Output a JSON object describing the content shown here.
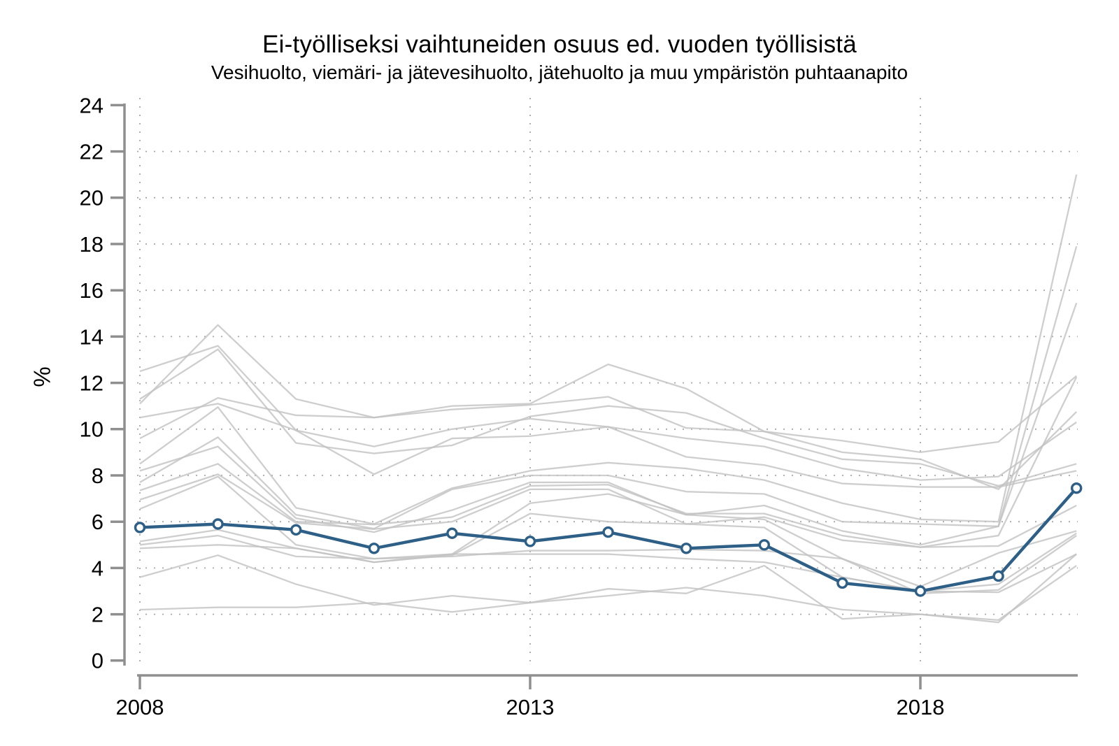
{
  "figure": {
    "title": "Ei-työlliseksi vaihtuneiden osuus ed. vuoden työllisistä",
    "subtitle": "Vesihuolto, viemäri- ja jätevesihuolto, jätehuolto ja muu ympäristön puhtaanapito",
    "ylabel": "%"
  },
  "chart_data": {
    "type": "line",
    "title": "Ei-työlliseksi vaihtuneiden osuus ed. vuoden työllisistä",
    "subtitle": "Vesihuolto, viemäri- ja jätevesihuolto, jätehuolto ja muu ympäristön puhtaanapito",
    "xlabel": "",
    "ylabel": "%",
    "x": [
      2008,
      2009,
      2010,
      2011,
      2012,
      2013,
      2014,
      2015,
      2016,
      2017,
      2018,
      2019,
      2020
    ],
    "xticks": [
      2008,
      2013,
      2018
    ],
    "yticks": [
      0,
      2,
      4,
      6,
      8,
      10,
      12,
      14,
      16,
      18,
      20,
      22,
      24
    ],
    "ylim": [
      0,
      24
    ],
    "grid": "dotted horizontal lines at 2..22, dotted vertical lines at 2008/2013/2018",
    "legend_position": "none",
    "highlighted_series": {
      "name": "Vesihuolto, viemäri- ja jätevesihuolto, jätehuolto ja muu ympäristön puhtaanapito",
      "color": "#2d5f87",
      "marker": "open-circle",
      "values": [
        5.75,
        5.9,
        5.65,
        4.85,
        5.5,
        5.15,
        5.55,
        4.85,
        5.0,
        3.35,
        3.0,
        3.65,
        7.45
      ]
    },
    "background_series": [
      {
        "name": "other-industry-01",
        "values": [
          11.1,
          14.5,
          11.3,
          10.5,
          11.0,
          11.1,
          12.8,
          11.75,
          9.9,
          9.5,
          9.0,
          9.45,
          12.3
        ]
      },
      {
        "name": "other-industry-02",
        "values": [
          12.5,
          13.6,
          9.95,
          9.25,
          10.0,
          10.45,
          10.1,
          9.6,
          9.25,
          8.3,
          7.8,
          7.95,
          10.3
        ]
      },
      {
        "name": "other-industry-03",
        "values": [
          11.3,
          13.45,
          9.4,
          8.95,
          9.3,
          10.55,
          11.0,
          10.7,
          9.6,
          8.7,
          8.5,
          7.55,
          8.5
        ]
      },
      {
        "name": "other-industry-04",
        "values": [
          9.6,
          11.35,
          10.6,
          10.5,
          10.85,
          11.05,
          11.4,
          10.05,
          9.9,
          9.0,
          8.7,
          7.4,
          10.75
        ]
      },
      {
        "name": "other-industry-05",
        "values": [
          10.5,
          11.1,
          9.95,
          8.05,
          9.6,
          9.7,
          10.1,
          8.8,
          8.45,
          7.65,
          7.5,
          7.5,
          8.2
        ]
      },
      {
        "name": "other-industry-06",
        "values": [
          8.5,
          10.95,
          6.6,
          5.9,
          7.45,
          8.2,
          8.55,
          8.3,
          7.8,
          6.8,
          6.1,
          6.0,
          21.0
        ]
      },
      {
        "name": "other-industry-07",
        "values": [
          7.7,
          9.65,
          6.3,
          5.7,
          7.4,
          8.0,
          8.0,
          7.3,
          7.2,
          6.0,
          5.9,
          5.8,
          17.9
        ]
      },
      {
        "name": "other-industry-08",
        "values": [
          8.2,
          9.25,
          6.15,
          5.55,
          6.5,
          7.7,
          7.7,
          6.3,
          6.7,
          5.6,
          5.0,
          5.8,
          15.45
        ]
      },
      {
        "name": "other-industry-09",
        "values": [
          7.35,
          8.5,
          6.0,
          5.88,
          6.2,
          7.55,
          7.6,
          6.35,
          6.35,
          5.4,
          4.9,
          5.4,
          12.25
        ]
      },
      {
        "name": "other-industry-10",
        "values": [
          6.95,
          8.05,
          5.95,
          5.68,
          6.0,
          7.4,
          7.4,
          5.9,
          6.2,
          5.2,
          4.9,
          4.95,
          6.7
        ]
      },
      {
        "name": "other-industry-11",
        "values": [
          6.55,
          7.95,
          5.0,
          4.4,
          4.6,
          6.8,
          7.2,
          6.3,
          6.1,
          4.4,
          3.2,
          4.65,
          5.6
        ]
      },
      {
        "name": "other-industry-12",
        "values": [
          5.15,
          5.65,
          4.85,
          4.25,
          4.55,
          6.35,
          6.0,
          5.9,
          5.75,
          3.6,
          3.0,
          3.3,
          5.5
        ]
      },
      {
        "name": "other-industry-13",
        "values": [
          5.0,
          5.4,
          4.5,
          4.4,
          4.5,
          4.75,
          4.75,
          4.8,
          4.75,
          4.4,
          2.9,
          3.05,
          5.4
        ]
      },
      {
        "name": "other-industry-14",
        "values": [
          4.85,
          5.0,
          4.85,
          4.25,
          4.6,
          4.6,
          4.6,
          4.4,
          4.25,
          3.6,
          3.0,
          2.95,
          4.6
        ]
      },
      {
        "name": "other-industry-15",
        "values": [
          3.6,
          4.55,
          3.3,
          2.4,
          2.8,
          2.5,
          3.1,
          2.9,
          4.1,
          1.8,
          2.0,
          1.75,
          4.1
        ]
      },
      {
        "name": "other-industry-16",
        "values": [
          2.2,
          2.3,
          2.3,
          2.5,
          2.1,
          2.5,
          2.8,
          3.15,
          2.8,
          2.2,
          2.0,
          1.65,
          4.6
        ]
      }
    ],
    "colors": {
      "highlight": "#2d5f87",
      "background_line": "#c2c2c2",
      "axis": "#8f8f8f",
      "grid": "#a8a8a8",
      "marker_fill": "#ffffff"
    }
  }
}
